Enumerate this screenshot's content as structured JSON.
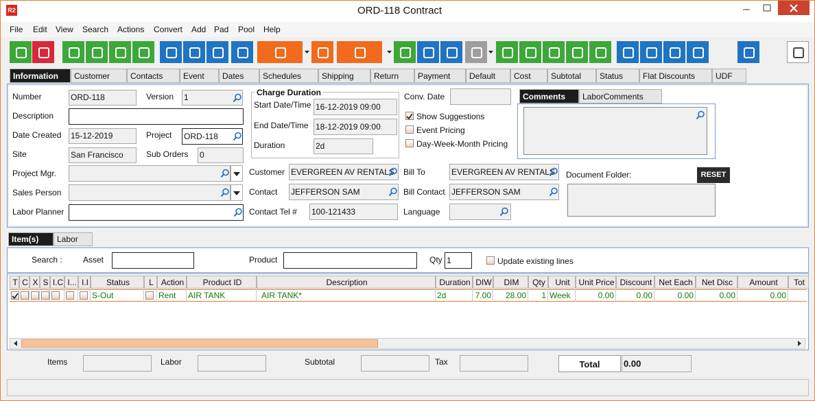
{
  "window": {
    "logo": "R2",
    "title": "ORD-118 Contract"
  },
  "menu": [
    "File",
    "Edit",
    "View",
    "Search",
    "Actions",
    "Convert",
    "Add",
    "Pad",
    "Pool",
    "Help"
  ],
  "tabs": [
    "Information",
    "Customer",
    "Contacts",
    "Event",
    "Dates",
    "Schedules",
    "Shipping",
    "Return",
    "Payment",
    "Default",
    "Cost",
    "Subtotal",
    "Status",
    "Flat Discounts",
    "UDF"
  ],
  "form": {
    "number": {
      "label": "Number",
      "value": "ORD-118"
    },
    "version": {
      "label": "Version",
      "value": "1"
    },
    "description": {
      "label": "Description"
    },
    "date_created": {
      "label": "Date Created",
      "value": "15-12-2019"
    },
    "project": {
      "label": "Project",
      "value": "ORD-118"
    },
    "site": {
      "label": "Site",
      "value": "San Francisco"
    },
    "sub_orders": {
      "label": "Sub Orders",
      "value": "0"
    },
    "project_mgr": {
      "label": "Project Mgr."
    },
    "sales_person": {
      "label": "Sales Person"
    },
    "labor_planner": {
      "label": "Labor Planner"
    },
    "charge_duration": {
      "title": "Charge Duration",
      "start": {
        "label": "Start Date/Time",
        "value": "16-12-2019 09:00"
      },
      "end": {
        "label": "End Date/Time",
        "value": "18-12-2019 09:00"
      },
      "duration": {
        "label": "Duration",
        "value": "2d"
      }
    },
    "conv_date": {
      "label": "Conv. Date"
    },
    "options": [
      {
        "label": "Show Suggestions",
        "checked": true
      },
      {
        "label": "Event Pricing",
        "checked": false
      },
      {
        "label": "Day-Week-Month Pricing",
        "checked": false
      }
    ],
    "customer": {
      "label": "Customer",
      "value": "EVERGREEN AV RENTALS"
    },
    "contact": {
      "label": "Contact",
      "value": "JEFFERSON SAM"
    },
    "contact_tel": {
      "label": "Contact Tel #",
      "value": "100-121433"
    },
    "bill_to": {
      "label": "Bill To",
      "value": "EVERGREEN AV RENTALS"
    },
    "bill_contact": {
      "label": "Bill Contact",
      "value": "JEFFERSON SAM"
    },
    "language": {
      "label": "Language"
    },
    "document_folder": {
      "label": "Document Folder:",
      "button": "RESET"
    }
  },
  "comments_tabs": [
    "Comments",
    "LaborComments"
  ],
  "items": {
    "tabs": [
      "Item(s)",
      "Labor"
    ],
    "search": {
      "label": "Search :",
      "asset": "Asset",
      "product": "Product",
      "qty": {
        "label": "Qty",
        "value": "1"
      },
      "update": {
        "label": "Update existing lines",
        "checked": false
      }
    },
    "columns": [
      "T",
      "C",
      "X",
      "S",
      "I.C",
      "I...",
      "I.I",
      "Status",
      "L",
      "Action",
      "Product ID",
      "Description",
      "Duration",
      "DIW",
      "DIM",
      "Qty",
      "Unit",
      "Unit Price",
      "Discount",
      "Net Each",
      "Net Disc",
      "Amount",
      "Tot"
    ],
    "rows": [
      [
        true,
        false,
        false,
        false,
        false,
        false,
        false,
        "S-Out",
        false,
        "Rent",
        "AIR TANK",
        "AIR TANK*",
        "2d",
        "7.00",
        "28.00",
        "1",
        "Week",
        "0.00",
        "0.00",
        "0.00",
        "0.00",
        "0.00"
      ]
    ]
  },
  "footer": {
    "items": "Items",
    "labor": "Labor",
    "subtotal": "Subtotal",
    "tax": "Tax",
    "total": {
      "label": "Total",
      "value": "0.00"
    }
  }
}
